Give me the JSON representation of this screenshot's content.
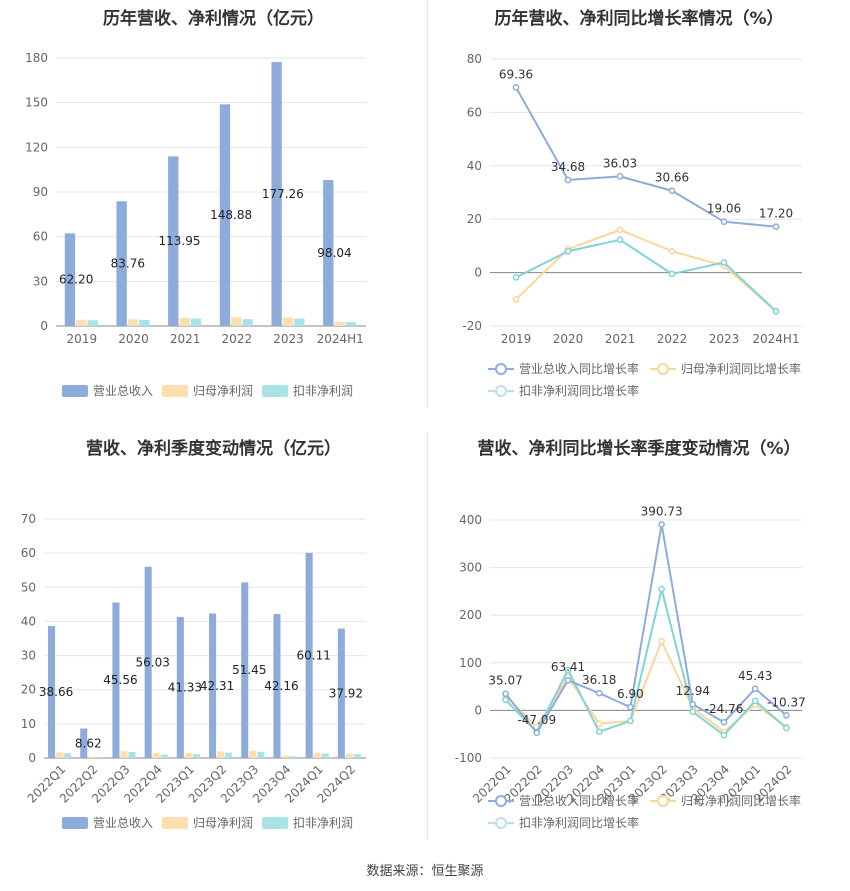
{
  "source_label": "数据来源：恒生聚源",
  "colors": {
    "revenue": "#8dacdb",
    "parent": "#fbdfae",
    "deducted": "#a9e3e6",
    "rev_line": "#8dacdb",
    "parent_line": "#fcd59a",
    "ded_line": "#7fd4d4",
    "grid": "#e6e6e6",
    "axis": "#999999"
  },
  "chart_data": [
    {
      "id": "annual_amount",
      "type": "bar",
      "title": "历年营收、净利情况（亿元）",
      "categories": [
        "2019",
        "2020",
        "2021",
        "2022",
        "2023",
        "2024H1"
      ],
      "ylim": [
        0,
        180
      ],
      "yticks": [
        "0",
        "30",
        "60",
        "90",
        "120",
        "150",
        "180"
      ],
      "grid": true,
      "legend_position": "bottom",
      "series": [
        {
          "name": "营业总收入",
          "values": [
            62.2,
            83.76,
            113.95,
            148.88,
            177.26,
            98.04
          ],
          "labels": [
            "62.20",
            "83.76",
            "113.95",
            "148.88",
            "177.26",
            "98.04"
          ]
        },
        {
          "name": "归母净利润",
          "values": [
            4.2,
            4.5,
            5.5,
            5.9,
            5.8,
            2.8
          ]
        },
        {
          "name": "扣非净利润",
          "values": [
            3.9,
            4.1,
            5.0,
            4.6,
            5.0,
            2.5
          ]
        }
      ]
    },
    {
      "id": "annual_growth",
      "type": "line",
      "title": "历年营收、净利同比增长率情况（%）",
      "categories": [
        "2019",
        "2020",
        "2021",
        "2022",
        "2023",
        "2024H1"
      ],
      "ylim": [
        -20,
        80
      ],
      "yticks": [
        "-20",
        "0",
        "20",
        "40",
        "60",
        "80"
      ],
      "grid": true,
      "legend_position": "bottom",
      "series": [
        {
          "name": "营业总收入同比增长率",
          "values": [
            69.36,
            34.68,
            36.03,
            30.66,
            19.06,
            17.2
          ],
          "labels": [
            "69.36",
            "34.68",
            "36.03",
            "30.66",
            "19.06",
            "17.20"
          ]
        },
        {
          "name": "归母净利润同比增长率",
          "values": [
            -10,
            8.8,
            16.0,
            8.0,
            2.5,
            -14.5
          ]
        },
        {
          "name": "扣非净利润同比增长率",
          "values": [
            -1.8,
            8.0,
            12.3,
            -0.5,
            3.8,
            -14.5
          ]
        }
      ]
    },
    {
      "id": "quarterly_amount",
      "type": "bar",
      "title": "营收、净利季度变动情况（亿元）",
      "categories": [
        "2022Q1",
        "2022Q2",
        "2022Q3",
        "2022Q4",
        "2023Q1",
        "2023Q2",
        "2023Q3",
        "2023Q4",
        "2024Q1",
        "2024Q2"
      ],
      "ylim": [
        0,
        70
      ],
      "yticks": [
        "0",
        "10",
        "20",
        "30",
        "40",
        "50",
        "60",
        "70"
      ],
      "grid": true,
      "legend_position": "bottom",
      "series": [
        {
          "name": "营业总收入",
          "values": [
            38.66,
            8.62,
            45.56,
            56.03,
            41.33,
            42.31,
            51.45,
            42.16,
            60.11,
            37.92
          ],
          "labels": [
            "38.66",
            "8.62",
            "45.56",
            "56.03",
            "41.33",
            "42.31",
            "51.45",
            "42.16",
            "60.11",
            "37.92"
          ]
        },
        {
          "name": "归母净利润",
          "values": [
            1.6,
            0.4,
            2.0,
            1.5,
            1.4,
            1.9,
            2.2,
            0.6,
            1.5,
            1.3
          ]
        },
        {
          "name": "扣非净利润",
          "values": [
            1.4,
            0.3,
            1.8,
            1.0,
            1.1,
            1.6,
            1.8,
            0.5,
            1.3,
            1.1
          ]
        }
      ]
    },
    {
      "id": "quarterly_growth",
      "type": "line",
      "title": "营收、净利同比增长率季度变动情况（%）",
      "categories": [
        "2022Q1",
        "2022Q2",
        "2022Q3",
        "2022Q4",
        "2023Q1",
        "2023Q2",
        "2023Q3",
        "2023Q4",
        "2024Q1",
        "2024Q2"
      ],
      "ylim": [
        -100,
        400
      ],
      "yticks": [
        "-100",
        "0",
        "100",
        "200",
        "300",
        "400"
      ],
      "grid": true,
      "legend_position": "bottom",
      "series": [
        {
          "name": "营业总收入同比增长率",
          "values": [
            35.07,
            -47.09,
            63.41,
            36.18,
            6.9,
            390.73,
            12.94,
            -24.76,
            45.43,
            -10.37
          ],
          "labels": [
            "35.07",
            "-47.09",
            "63.41",
            "36.18",
            "6.90",
            "390.73",
            "12.94",
            "-24.76",
            "45.43",
            "-10.37"
          ]
        },
        {
          "name": "归母净利润同比增长率",
          "values": [
            30,
            -35,
            70,
            -28,
            -22,
            145,
            5,
            -45,
            12,
            -35
          ]
        },
        {
          "name": "扣非净利润同比增长率",
          "values": [
            22,
            -45,
            85,
            -45,
            -22,
            255,
            -3,
            -52,
            20,
            -37
          ]
        }
      ]
    }
  ]
}
